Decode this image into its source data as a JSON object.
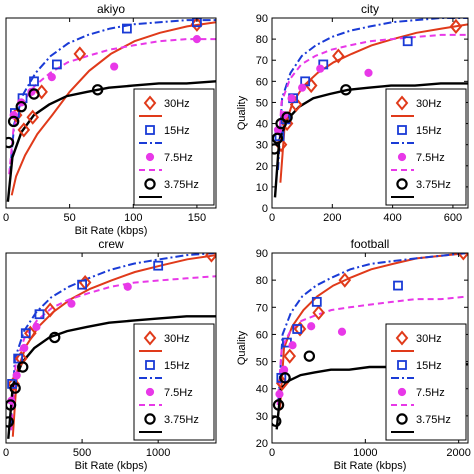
{
  "legend_labels": [
    "30Hz",
    "15Hz",
    "7.5Hz",
    "3.75Hz"
  ],
  "colors": {
    "series_30": "#e03a1a",
    "series_15": "#1a3bd6",
    "series_7_5": "#e838e8",
    "series_3_75": "#000000",
    "axis": "#000000",
    "background": "#ffffff"
  },
  "chart_data": [
    {
      "type": "scatter",
      "title": "akiyo",
      "xlabel": "Bit Rate (kbps)",
      "ylabel": "",
      "xlim": [
        0,
        165
      ],
      "ylim": [
        0,
        90
      ],
      "xticks": [
        "0",
        "50",
        "100",
        "150"
      ],
      "xtick_values": [
        0,
        50,
        100,
        150
      ],
      "yticks": [],
      "ytick_values": [],
      "grid": false,
      "legend_position": "lower-right",
      "series": [
        {
          "name": "30Hz",
          "marker": "diamond",
          "line": "solid",
          "points": [
            [
              8,
              44
            ],
            [
              14,
              37
            ],
            [
              21,
              43
            ],
            [
              28,
              55
            ],
            [
              58,
              73
            ],
            [
              150,
              87
            ]
          ],
          "fit": {
            "xmin": 4.5,
            "xmax": 165,
            "y": [
              6,
              15,
              25,
              35,
              44,
              55,
              65,
              73,
              79,
              83,
              86,
              88
            ]
          }
        },
        {
          "name": "15Hz",
          "marker": "square",
          "line": "dashdot",
          "points": [
            [
              7,
              45
            ],
            [
              13,
              52
            ],
            [
              22,
              60
            ],
            [
              40,
              68
            ],
            [
              95,
              85
            ],
            [
              150,
              88
            ]
          ],
          "fit": {
            "xmin": 3,
            "xmax": 165,
            "y": [
              16,
              40,
              54,
              64,
              72,
              78,
              82,
              85,
              87,
              88,
              89,
              89
            ]
          }
        },
        {
          "name": "7.5Hz",
          "marker": "dot",
          "line": "dashed",
          "points": [
            [
              6,
              44
            ],
            [
              12,
              50
            ],
            [
              20,
              55
            ],
            [
              36,
              62
            ],
            [
              85,
              67
            ],
            [
              150,
              80
            ]
          ],
          "fit": {
            "xmin": 2.5,
            "xmax": 165,
            "y": [
              16,
              38,
              50,
              58,
              64,
              69,
              72,
              75,
              77,
              79,
              80,
              80
            ]
          }
        },
        {
          "name": "3.75Hz",
          "marker": "circle",
          "line": "solid",
          "points": [
            [
              2,
              31
            ],
            [
              6,
              41
            ],
            [
              12,
              48
            ],
            [
              22,
              54
            ],
            [
              72,
              56
            ]
          ],
          "fit": {
            "xmin": 1.5,
            "xmax": 165,
            "y": [
              3,
              24,
              36,
              44,
              49,
              53,
              55,
              57,
              58,
              59,
              59,
              60
            ]
          }
        }
      ]
    },
    {
      "type": "scatter",
      "title": "city",
      "xlabel": "",
      "ylabel": "Quality",
      "xlim": [
        0,
        650
      ],
      "ylim": [
        0,
        90
      ],
      "xticks": [
        "0",
        "200",
        "400",
        "600"
      ],
      "xtick_values": [
        0,
        200,
        400,
        600
      ],
      "yticks": [
        "0",
        "10",
        "20",
        "30",
        "40",
        "50",
        "60",
        "70",
        "80",
        "90"
      ],
      "ytick_values": [
        0,
        10,
        20,
        30,
        40,
        50,
        60,
        70,
        80,
        90
      ],
      "grid": false,
      "legend_position": "lower-right",
      "series": [
        {
          "name": "30Hz",
          "marker": "diamond",
          "line": "solid",
          "points": [
            [
              30,
              30
            ],
            [
              50,
              40
            ],
            [
              80,
              49
            ],
            [
              130,
              58
            ],
            [
              220,
              72
            ],
            [
              610,
              86
            ]
          ],
          "fit": {
            "xmin": 28,
            "xmax": 650,
            "y": [
              12,
              38,
              50,
              58,
              64,
              69,
              73,
              77,
              80,
              83,
              85,
              87
            ]
          }
        },
        {
          "name": "15Hz",
          "marker": "square",
          "line": "dashdot",
          "points": [
            [
              25,
              34
            ],
            [
              45,
              42
            ],
            [
              70,
              52
            ],
            [
              110,
              60
            ],
            [
              170,
              68
            ],
            [
              450,
              79
            ]
          ],
          "fit": {
            "xmin": 20,
            "xmax": 650,
            "y": [
              18,
              52,
              64,
              72,
              77,
              81,
              84,
              86,
              88,
              89,
              90,
              90
            ]
          }
        },
        {
          "name": "7.5Hz",
          "marker": "dot",
          "line": "dashed",
          "points": [
            [
              20,
              37
            ],
            [
              40,
              44
            ],
            [
              65,
              52
            ],
            [
              100,
              57
            ],
            [
              160,
              66
            ],
            [
              320,
              64
            ]
          ],
          "fit": {
            "xmin": 18,
            "xmax": 650,
            "y": [
              20,
              50,
              61,
              68,
              72,
              75,
              77,
              79,
              80,
              81,
              82,
              82
            ]
          }
        },
        {
          "name": "3.75Hz",
          "marker": "circle",
          "line": "solid",
          "points": [
            [
              8,
              28
            ],
            [
              18,
              33
            ],
            [
              30,
              40
            ],
            [
              50,
              43
            ],
            [
              245,
              56
            ]
          ],
          "fit": {
            "xmin": 10,
            "xmax": 650,
            "y": [
              5,
              32,
              42,
              48,
              52,
              54,
              56,
              57,
              58,
              58,
              59,
              59
            ]
          }
        }
      ]
    },
    {
      "type": "scatter",
      "title": "crew",
      "xlabel": "Bit Rate (kbps)",
      "ylabel": "",
      "xlim": [
        0,
        1380
      ],
      "ylim": [
        0,
        90
      ],
      "xticks": [
        "0",
        "500",
        "1000"
      ],
      "xtick_values": [
        0,
        500,
        1000
      ],
      "yticks": [],
      "ytick_values": [],
      "grid": false,
      "legend_position": "lower-right",
      "series": [
        {
          "name": "30Hz",
          "marker": "diamond",
          "line": "solid",
          "points": [
            [
              50,
              28
            ],
            [
              100,
              40
            ],
            [
              160,
              52
            ],
            [
              290,
              63
            ],
            [
              520,
              76
            ],
            [
              1350,
              89
            ]
          ],
          "fit": {
            "xmin": 45,
            "xmax": 1380,
            "y": [
              3,
              34,
              46,
              55,
              62,
              68,
              73,
              77,
              81,
              84,
              87,
              89
            ]
          }
        },
        {
          "name": "15Hz",
          "marker": "square",
          "line": "dashdot",
          "points": [
            [
              40,
              28
            ],
            [
              80,
              40
            ],
            [
              130,
              52
            ],
            [
              220,
              61
            ],
            [
              500,
              75
            ],
            [
              1000,
              84
            ]
          ],
          "fit": {
            "xmin": 30,
            "xmax": 1380,
            "y": [
              8,
              40,
              53,
              62,
              69,
              74,
              78,
              82,
              85,
              87,
              89,
              90
            ]
          }
        },
        {
          "name": "7.5Hz",
          "marker": "dot",
          "line": "dashed",
          "points": [
            [
              35,
              20
            ],
            [
              70,
              32
            ],
            [
              120,
              45
            ],
            [
              200,
              55
            ],
            [
              430,
              66
            ],
            [
              800,
              74
            ]
          ],
          "fit": {
            "xmin": 35,
            "xmax": 1380,
            "y": [
              6,
              38,
              50,
              58,
              64,
              68,
              71,
              74,
              76,
              77,
              78,
              79
            ]
          }
        },
        {
          "name": "3.75Hz",
          "marker": "circle",
          "line": "solid",
          "points": [
            [
              15,
              10
            ],
            [
              30,
              18
            ],
            [
              60,
              26
            ],
            [
              110,
              36
            ],
            [
              320,
              50
            ]
          ],
          "fit": {
            "xmin": 15,
            "xmax": 1380,
            "y": [
              2,
              27,
              38,
              45,
              50,
              53,
              55,
              57,
              58,
              59,
              60,
              60
            ]
          }
        }
      ]
    },
    {
      "type": "scatter",
      "title": "football",
      "xlabel": "Bit Rate (kbps)",
      "ylabel": "Quality",
      "xlim": [
        0,
        2100
      ],
      "ylim": [
        20,
        90
      ],
      "xticks": [
        "0",
        "1000",
        "2000"
      ],
      "xtick_values": [
        0,
        1000,
        2000
      ],
      "yticks": [
        "20",
        "30",
        "40",
        "50",
        "60",
        "70",
        "80",
        "90"
      ],
      "ytick_values": [
        20,
        30,
        40,
        50,
        60,
        70,
        80,
        90
      ],
      "grid": false,
      "legend_position": "lower-right",
      "series": [
        {
          "name": "30Hz",
          "marker": "diamond",
          "line": "solid",
          "points": [
            [
              110,
              42
            ],
            [
              190,
              52
            ],
            [
              300,
              62
            ],
            [
              500,
              68
            ],
            [
              780,
              80
            ],
            [
              2050,
              90
            ]
          ],
          "fit": {
            "xmin": 85,
            "xmax": 2100,
            "y": [
              32,
              55,
              63,
              69,
              74,
              78,
              81,
              84,
              86,
              88,
              89,
              90
            ]
          }
        },
        {
          "name": "15Hz",
          "marker": "square",
          "line": "dashdot",
          "points": [
            [
              100,
              44
            ],
            [
              160,
              57
            ],
            [
              270,
              62
            ],
            [
              480,
              72
            ],
            [
              1350,
              78
            ]
          ],
          "fit": {
            "xmin": 70,
            "xmax": 2100,
            "y": [
              36,
              60,
              68,
              74,
              78,
              81,
              84,
              86,
              87,
              88,
              89,
              90
            ]
          }
        },
        {
          "name": "7.5Hz",
          "marker": "dot",
          "line": "dashed",
          "points": [
            [
              80,
              38
            ],
            [
              130,
              47
            ],
            [
              220,
              56
            ],
            [
              420,
              63
            ],
            [
              750,
              61
            ]
          ],
          "fit": {
            "xmin": 60,
            "xmax": 2100,
            "y": [
              34,
              55,
              61,
              65,
              67,
              69,
              70,
              71,
              72,
              73,
              73,
              74
            ]
          }
        },
        {
          "name": "3.75Hz",
          "marker": "circle",
          "line": "solid",
          "points": [
            [
              40,
              28
            ],
            [
              70,
              34
            ],
            [
              140,
              44
            ],
            [
              400,
              52
            ]
          ],
          "fit": {
            "xmin": 50,
            "xmax": 2100,
            "y": [
              25,
              40,
              43,
              45,
              46,
              47,
              47,
              48,
              48,
              48,
              49,
              49
            ]
          }
        }
      ]
    }
  ]
}
